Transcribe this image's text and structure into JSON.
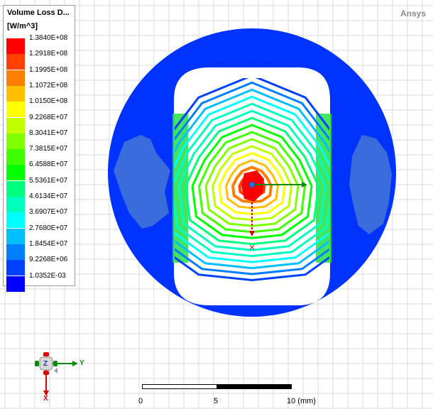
{
  "app": {
    "brand": "Ansys"
  },
  "legend": {
    "title": "Volume Loss D...",
    "unit": "[W/m^3]",
    "entries": [
      {
        "value": "1.3840E+08",
        "color": "#ff0000"
      },
      {
        "value": "1.2918E+08",
        "color": "#ff4000"
      },
      {
        "value": "1.1995E+08",
        "color": "#ff8000"
      },
      {
        "value": "1.1072E+08",
        "color": "#ffbf00"
      },
      {
        "value": "1.0150E+08",
        "color": "#ffff00"
      },
      {
        "value": "9.2268E+07",
        "color": "#bfff00"
      },
      {
        "value": "8.3041E+07",
        "color": "#80ff00"
      },
      {
        "value": "7.3815E+07",
        "color": "#40ff00"
      },
      {
        "value": "6.4588E+07",
        "color": "#00ff00"
      },
      {
        "value": "5.5361E+07",
        "color": "#00ff80"
      },
      {
        "value": "4.6134E+07",
        "color": "#00ffbf"
      },
      {
        "value": "3.6907E+07",
        "color": "#00ffff"
      },
      {
        "value": "2.7680E+07",
        "color": "#00bfff"
      },
      {
        "value": "1.8454E+07",
        "color": "#0080ff"
      },
      {
        "value": "9.2268E+06",
        "color": "#0040ff"
      },
      {
        "value": "1.0352E-03",
        "color": "#0000ff"
      }
    ]
  },
  "scale_bar": {
    "labels": [
      "0",
      "5",
      "10 (mm)"
    ]
  },
  "triad": {
    "x": "X",
    "y": "Y",
    "z": "Z"
  },
  "colors": {
    "background": "#ffffff",
    "grid": "#d9d9d9",
    "core": "#0033ff",
    "low_patch": "#3a6cdc"
  }
}
